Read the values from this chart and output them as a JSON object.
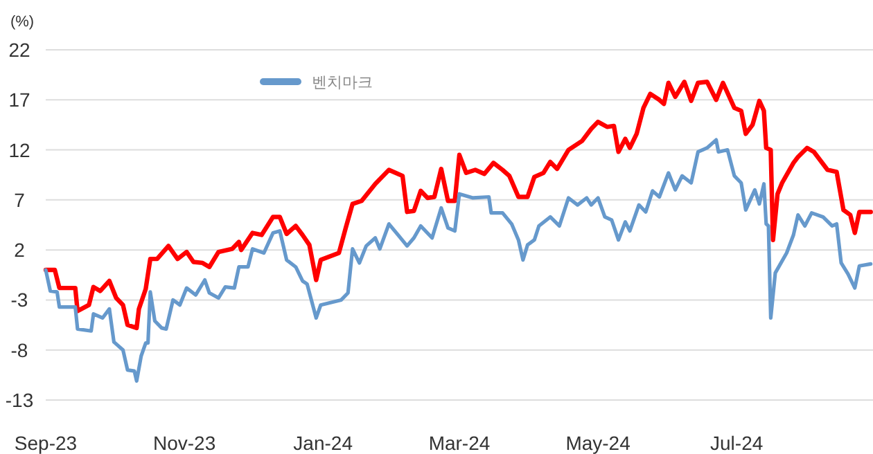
{
  "chart_data": {
    "type": "line",
    "ylabel": "(%)",
    "xlim": [
      "2023-09-01",
      "2024-08-30"
    ],
    "xticks": [
      {
        "value": "2023-09-01",
        "label": "Sep-23"
      },
      {
        "value": "2023-11-01",
        "label": "Nov-23"
      },
      {
        "value": "2024-01-01",
        "label": "Jan-24"
      },
      {
        "value": "2024-03-01",
        "label": "Mar-24"
      },
      {
        "value": "2024-05-01",
        "label": "May-24"
      },
      {
        "value": "2024-07-01",
        "label": "Jul-24"
      }
    ],
    "ylim": [
      -13,
      22
    ],
    "yticks": [
      -13,
      -8,
      -3,
      2,
      7,
      12,
      17,
      22
    ],
    "grid": "y",
    "legend": "top",
    "marker": "none",
    "line_style": "solid",
    "series": [
      {
        "color": "#ff0000",
        "x": [
          "2023-09-01",
          "2023-09-05",
          "2023-09-07",
          "2023-09-14",
          "2023-09-15",
          "2023-09-20",
          "2023-09-22",
          "2023-09-25",
          "2023-09-29",
          "2023-10-02",
          "2023-10-05",
          "2023-10-07",
          "2023-10-11",
          "2023-10-12",
          "2023-10-15",
          "2023-10-17",
          "2023-10-20",
          "2023-10-25",
          "2023-10-29",
          "2023-11-02",
          "2023-11-05",
          "2023-11-09",
          "2023-11-12",
          "2023-11-16",
          "2023-11-22",
          "2023-11-25",
          "2023-11-26",
          "2023-12-01",
          "2023-12-05",
          "2023-12-10",
          "2023-12-13",
          "2023-12-16",
          "2023-12-20",
          "2023-12-23",
          "2023-12-26",
          "2023-12-29",
          "2023-12-31",
          "2024-01-08",
          "2024-01-11",
          "2024-01-14",
          "2024-01-18",
          "2024-01-24",
          "2024-01-30",
          "2024-02-05",
          "2024-02-07",
          "2024-02-10",
          "2024-02-13",
          "2024-02-16",
          "2024-02-19",
          "2024-02-22",
          "2024-02-25",
          "2024-02-28",
          "2024-03-01",
          "2024-03-04",
          "2024-03-08",
          "2024-03-12",
          "2024-03-16",
          "2024-03-20",
          "2024-03-23",
          "2024-03-27",
          "2024-03-31",
          "2024-04-03",
          "2024-04-07",
          "2024-04-10",
          "2024-04-13",
          "2024-04-18",
          "2024-04-24",
          "2024-04-28",
          "2024-05-01",
          "2024-05-05",
          "2024-05-08",
          "2024-05-10",
          "2024-05-13",
          "2024-05-15",
          "2024-05-18",
          "2024-05-21",
          "2024-05-24",
          "2024-05-28",
          "2024-05-30",
          "2024-06-01",
          "2024-06-04",
          "2024-06-08",
          "2024-06-11",
          "2024-06-14",
          "2024-06-18",
          "2024-06-22",
          "2024-06-25",
          "2024-06-30",
          "2024-07-03",
          "2024-07-05",
          "2024-07-08",
          "2024-07-11",
          "2024-07-13",
          "2024-07-14",
          "2024-07-16",
          "2024-07-17",
          "2024-07-19",
          "2024-07-21",
          "2024-07-26",
          "2024-07-28",
          "2024-08-01",
          "2024-08-04",
          "2024-08-10",
          "2024-08-14",
          "2024-08-17",
          "2024-08-20",
          "2024-08-22",
          "2024-08-24",
          "2024-08-29"
        ],
        "values": [
          0.0,
          0.0,
          -1.8,
          -1.8,
          -4.1,
          -3.5,
          -1.7,
          -2.1,
          -1.1,
          -2.8,
          -3.5,
          -5.5,
          -5.8,
          -3.9,
          -1.9,
          1.1,
          1.1,
          2.4,
          1.1,
          1.8,
          0.8,
          0.7,
          0.3,
          1.8,
          2.1,
          2.8,
          2.0,
          3.7,
          3.5,
          5.3,
          5.3,
          3.6,
          4.4,
          3.5,
          2.5,
          -1.0,
          1.0,
          1.7,
          4.2,
          6.6,
          6.9,
          8.6,
          10.0,
          9.4,
          5.8,
          5.9,
          7.9,
          7.2,
          7.3,
          10.1,
          6.9,
          6.9,
          11.5,
          9.7,
          10.0,
          9.6,
          10.7,
          10.0,
          9.4,
          7.3,
          7.3,
          9.3,
          9.7,
          10.8,
          10.1,
          12.0,
          12.9,
          14.1,
          14.8,
          14.3,
          14.4,
          11.8,
          13.1,
          12.2,
          13.6,
          16.2,
          17.6,
          17.0,
          16.6,
          18.7,
          17.3,
          18.8,
          16.9,
          18.7,
          18.8,
          17.0,
          18.7,
          16.2,
          15.9,
          13.6,
          14.5,
          16.9,
          15.9,
          12.2,
          12.0,
          3.0,
          7.6,
          8.7,
          10.7,
          11.3,
          12.2,
          11.8,
          10.0,
          9.8,
          6.0,
          5.5,
          3.7,
          5.8,
          5.8
        ]
      },
      {
        "name": "벤치마크",
        "color": "#6699cc",
        "x": [
          "2023-09-01",
          "2023-09-03",
          "2023-09-06",
          "2023-09-07",
          "2023-09-14",
          "2023-09-15",
          "2023-09-21",
          "2023-09-22",
          "2023-09-26",
          "2023-09-29",
          "2023-10-01",
          "2023-10-05",
          "2023-10-07",
          "2023-10-10",
          "2023-10-11",
          "2023-10-13",
          "2023-10-15",
          "2023-10-16",
          "2023-10-17",
          "2023-10-19",
          "2023-10-22",
          "2023-10-24",
          "2023-10-27",
          "2023-10-30",
          "2023-11-02",
          "2023-11-06",
          "2023-11-10",
          "2023-11-12",
          "2023-11-16",
          "2023-11-19",
          "2023-11-23",
          "2023-11-25",
          "2023-11-29",
          "2023-12-01",
          "2023-12-06",
          "2023-12-10",
          "2023-12-13",
          "2023-12-16",
          "2023-12-20",
          "2023-12-23",
          "2023-12-25",
          "2023-12-29",
          "2023-12-31",
          "2024-01-09",
          "2024-01-12",
          "2024-01-14",
          "2024-01-17",
          "2024-01-20",
          "2024-01-24",
          "2024-01-26",
          "2024-01-30",
          "2024-02-03",
          "2024-02-07",
          "2024-02-10",
          "2024-02-13",
          "2024-02-18",
          "2024-02-22",
          "2024-02-25",
          "2024-02-28",
          "2024-03-01",
          "2024-03-07",
          "2024-03-14",
          "2024-03-15",
          "2024-03-20",
          "2024-03-24",
          "2024-03-27",
          "2024-03-29",
          "2024-03-31",
          "2024-04-03",
          "2024-04-05",
          "2024-04-10",
          "2024-04-14",
          "2024-04-18",
          "2024-04-22",
          "2024-04-26",
          "2024-04-28",
          "2024-05-01",
          "2024-05-04",
          "2024-05-07",
          "2024-05-10",
          "2024-05-13",
          "2024-05-15",
          "2024-05-19",
          "2024-05-22",
          "2024-05-25",
          "2024-05-28",
          "2024-06-01",
          "2024-06-04",
          "2024-06-07",
          "2024-06-11",
          "2024-06-14",
          "2024-06-18",
          "2024-06-22",
          "2024-06-23",
          "2024-06-27",
          "2024-06-30",
          "2024-07-03",
          "2024-07-05",
          "2024-07-09",
          "2024-07-11",
          "2024-07-13",
          "2024-07-14",
          "2024-07-15",
          "2024-07-16",
          "2024-07-18",
          "2024-07-23",
          "2024-07-26",
          "2024-07-28",
          "2024-07-31",
          "2024-08-03",
          "2024-08-08",
          "2024-08-12",
          "2024-08-14",
          "2024-08-16",
          "2024-08-19",
          "2024-08-22",
          "2024-08-24",
          "2024-08-29"
        ],
        "values": [
          0.0,
          -2.1,
          -2.2,
          -3.7,
          -3.7,
          -5.9,
          -6.1,
          -4.4,
          -4.8,
          -3.9,
          -7.2,
          -8.0,
          -10.0,
          -10.1,
          -11.1,
          -8.6,
          -7.3,
          -7.3,
          -2.2,
          -5.1,
          -5.8,
          -5.9,
          -3.0,
          -3.5,
          -1.8,
          -2.5,
          -1.0,
          -2.3,
          -2.8,
          -1.7,
          -1.8,
          0.3,
          0.3,
          2.1,
          1.7,
          3.7,
          3.9,
          1.0,
          0.3,
          -1.1,
          -1.4,
          -4.8,
          -3.5,
          -3.0,
          -2.3,
          2.1,
          0.7,
          2.4,
          3.2,
          2.1,
          4.6,
          3.5,
          2.4,
          3.2,
          4.4,
          3.2,
          6.2,
          4.2,
          3.9,
          7.6,
          7.2,
          7.3,
          5.7,
          5.7,
          4.6,
          3.0,
          1.0,
          2.5,
          3.0,
          4.4,
          5.3,
          4.4,
          7.2,
          6.5,
          7.2,
          6.5,
          7.2,
          5.3,
          5.0,
          3.0,
          4.8,
          3.9,
          6.5,
          5.8,
          7.9,
          7.3,
          9.7,
          8.0,
          9.4,
          8.7,
          11.8,
          12.2,
          13.0,
          11.8,
          12.0,
          9.4,
          8.7,
          6.0,
          8.0,
          6.6,
          8.6,
          4.6,
          4.4,
          -4.8,
          -0.3,
          1.7,
          3.5,
          5.5,
          4.4,
          5.7,
          5.3,
          4.4,
          4.6,
          0.7,
          -0.4,
          -1.8,
          0.4,
          0.6
        ]
      }
    ]
  }
}
